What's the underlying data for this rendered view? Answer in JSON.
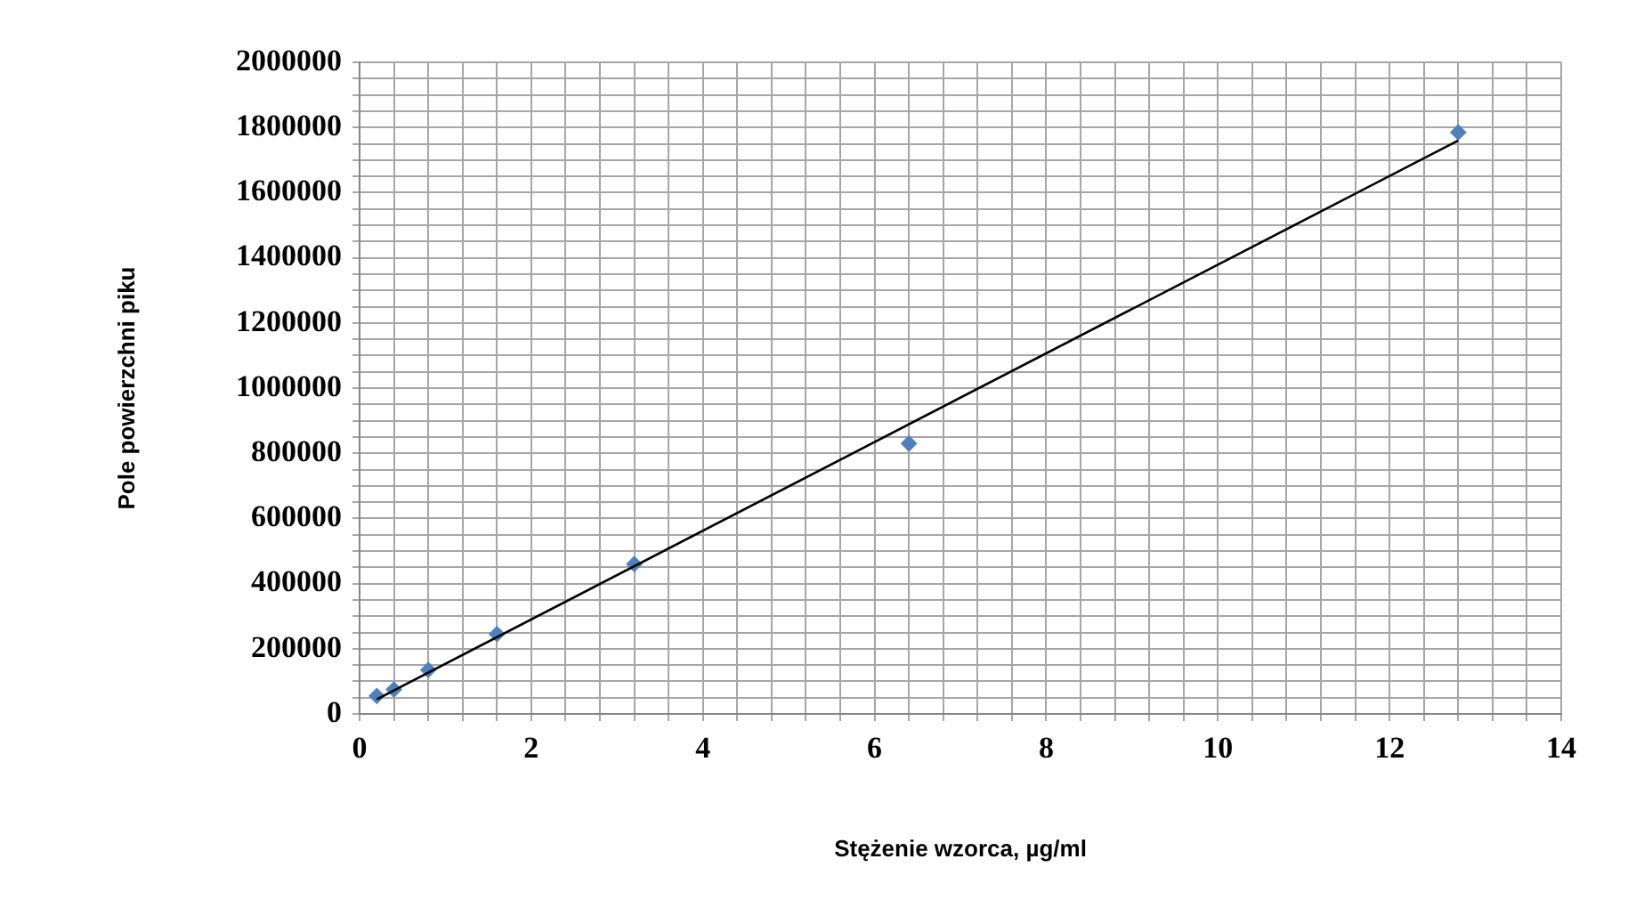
{
  "chart_data": {
    "type": "scatter",
    "xlabel": "Stężenie wzorca, µg/ml",
    "ylabel": "Pole powierzchni piku",
    "grid": true,
    "legend": false,
    "marker": "diamond",
    "xlim": [
      0,
      14
    ],
    "ylim": [
      0,
      2000000
    ],
    "xticks": [
      0,
      {
        "value": 0.4,
        "label": null
      },
      {
        "value": 0.8,
        "label": null
      },
      {
        "value": 1.2,
        "label": null
      },
      {
        "value": 1.6,
        "label": null
      },
      2,
      {
        "value": 2.4,
        "label": null
      },
      {
        "value": 2.8,
        "label": null
      },
      {
        "value": 3.2,
        "label": null
      },
      {
        "value": 3.6,
        "label": null
      },
      4,
      {
        "value": 4.4,
        "label": null
      },
      {
        "value": 4.8,
        "label": null
      },
      {
        "value": 5.2,
        "label": null
      },
      {
        "value": 5.6,
        "label": null
      },
      6,
      {
        "value": 6.4,
        "label": null
      },
      {
        "value": 6.8,
        "label": null
      },
      {
        "value": 7.2,
        "label": null
      },
      {
        "value": 7.6,
        "label": null
      },
      8,
      {
        "value": 8.4,
        "label": null
      },
      {
        "value": 8.8,
        "label": null
      },
      {
        "value": 9.2,
        "label": null
      },
      {
        "value": 9.6,
        "label": null
      },
      10,
      {
        "value": 10.4,
        "label": null
      },
      {
        "value": 10.8,
        "label": null
      },
      {
        "value": 11.2,
        "label": null
      },
      {
        "value": 11.6,
        "label": null
      },
      12,
      {
        "value": 12.4,
        "label": null
      },
      {
        "value": 12.8,
        "label": null
      },
      {
        "value": 13.2,
        "label": null
      },
      {
        "value": 13.6,
        "label": null
      },
      14
    ],
    "yticks": [
      0,
      {
        "value": 50000,
        "label": null
      },
      {
        "value": 100000,
        "label": null
      },
      {
        "value": 150000,
        "label": null
      },
      200000,
      {
        "value": 250000,
        "label": null
      },
      {
        "value": 300000,
        "label": null
      },
      {
        "value": 350000,
        "label": null
      },
      400000,
      {
        "value": 450000,
        "label": null
      },
      {
        "value": 500000,
        "label": null
      },
      {
        "value": 550000,
        "label": null
      },
      600000,
      {
        "value": 650000,
        "label": null
      },
      {
        "value": 700000,
        "label": null
      },
      {
        "value": 750000,
        "label": null
      },
      800000,
      {
        "value": 850000,
        "label": null
      },
      {
        "value": 900000,
        "label": null
      },
      {
        "value": 950000,
        "label": null
      },
      1000000,
      {
        "value": 1050000,
        "label": null
      },
      {
        "value": 1100000,
        "label": null
      },
      {
        "value": 1150000,
        "label": null
      },
      1200000,
      {
        "value": 1250000,
        "label": null
      },
      {
        "value": 1300000,
        "label": null
      },
      {
        "value": 1350000,
        "label": null
      },
      1400000,
      {
        "value": 1450000,
        "label": null
      },
      {
        "value": 1500000,
        "label": null
      },
      {
        "value": 1550000,
        "label": null
      },
      1600000,
      {
        "value": 1650000,
        "label": null
      },
      {
        "value": 1700000,
        "label": null
      },
      {
        "value": 1750000,
        "label": null
      },
      1800000,
      {
        "value": 1850000,
        "label": null
      },
      {
        "value": 1900000,
        "label": null
      },
      {
        "value": 1950000,
        "label": null
      },
      2000000
    ],
    "series": [
      {
        "color": "#4f81bd",
        "x": [
          0.2,
          0.4,
          0.8,
          1.6,
          3.2,
          6.4,
          12.8
        ],
        "values": [
          55000,
          75000,
          135000,
          245000,
          460000,
          830000,
          1785000
        ]
      },
      {
        "type": "line",
        "color": "#000000",
        "marker": "none",
        "line_style": "solid",
        "x": [
          0.2,
          12.8
        ],
        "values": [
          45000,
          1760000
        ]
      }
    ]
  }
}
